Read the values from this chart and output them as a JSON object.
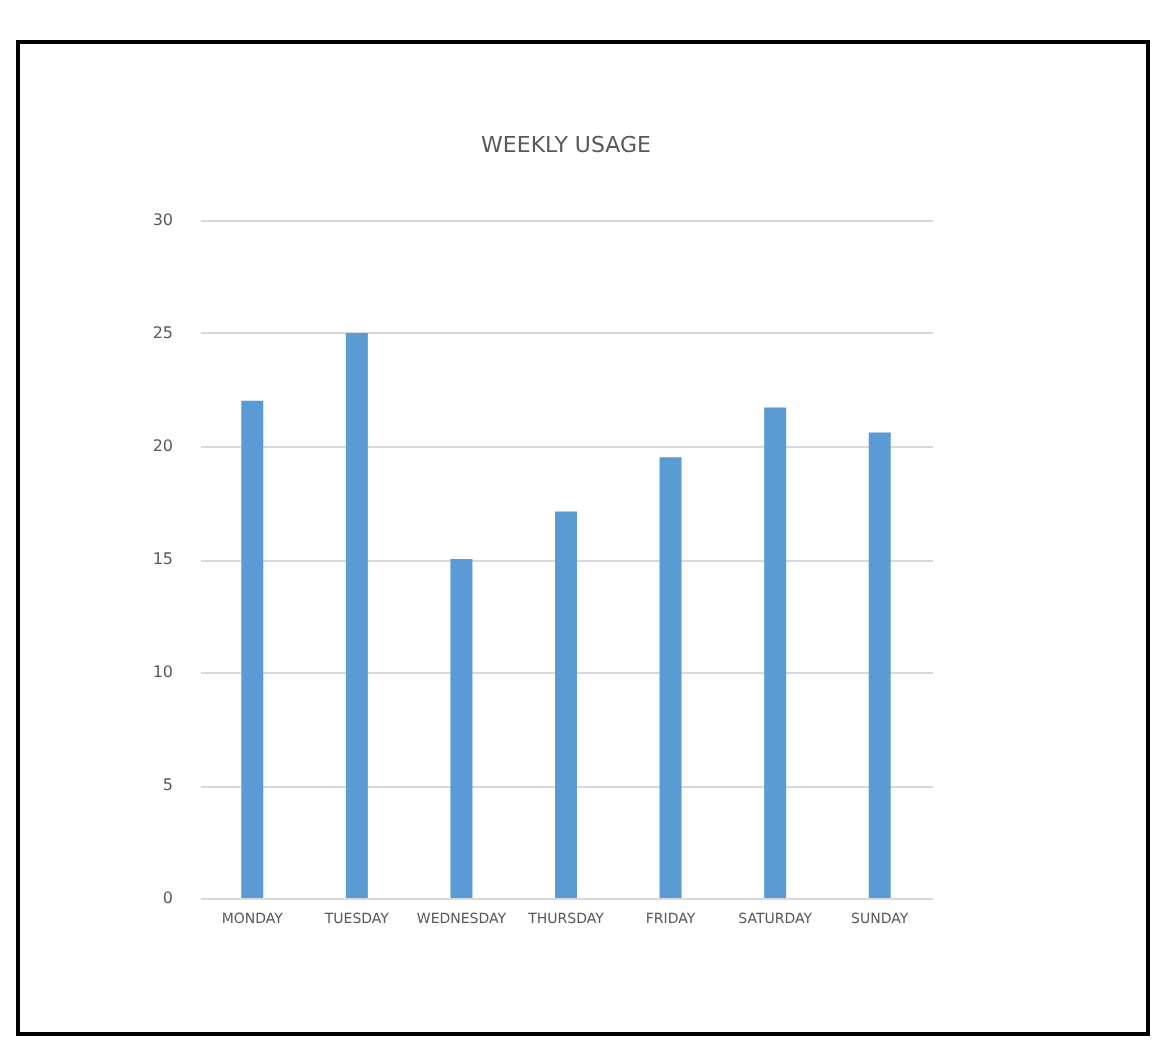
{
  "chart_data": {
    "type": "bar",
    "title": "WEEKLY USAGE",
    "categories": [
      "MONDAY",
      "TUESDAY",
      "WEDNESDAY",
      "THURSDAY",
      "FRIDAY",
      "SATURDAY",
      "SUNDAY"
    ],
    "values": [
      22,
      25,
      15,
      17.1,
      19.5,
      21.7,
      20.6
    ],
    "color": "#5b9bd5",
    "ylim": [
      0,
      30
    ],
    "yticks": [
      0,
      5,
      10,
      15,
      20,
      25,
      30
    ],
    "grid": "y"
  }
}
